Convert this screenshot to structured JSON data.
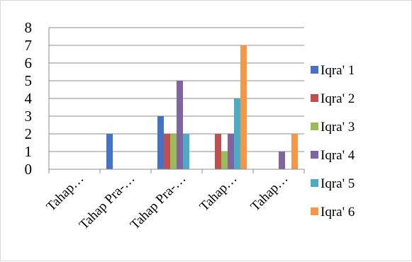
{
  "chart_data": {
    "type": "bar",
    "title": "",
    "xlabel": "",
    "ylabel": "",
    "ylim": [
      0,
      8
    ],
    "yticks": [
      0,
      1,
      2,
      3,
      4,
      5,
      6,
      7,
      8
    ],
    "grid": true,
    "legend_position": "right",
    "categories": [
      "Tahap…",
      "Tahap Pra-…",
      "Tahap Pra-…",
      "Tahap…",
      "Tahap…"
    ],
    "series": [
      {
        "name": "Iqra' 1",
        "color": "#4472C4",
        "values": [
          0,
          2,
          3,
          0,
          0
        ]
      },
      {
        "name": "Iqra' 2",
        "color": "#C0504D",
        "values": [
          0,
          0,
          2,
          2,
          0
        ]
      },
      {
        "name": "Iqra' 3",
        "color": "#9BBB59",
        "values": [
          0,
          0,
          2,
          1,
          0
        ]
      },
      {
        "name": "Iqra' 4",
        "color": "#8064A2",
        "values": [
          0,
          0,
          5,
          2,
          1
        ]
      },
      {
        "name": "Iqra' 5",
        "color": "#4BACC6",
        "values": [
          0,
          0,
          2,
          4,
          0
        ]
      },
      {
        "name": "Iqra' 6",
        "color": "#F79646",
        "values": [
          0,
          0,
          0,
          7,
          2
        ]
      }
    ]
  }
}
